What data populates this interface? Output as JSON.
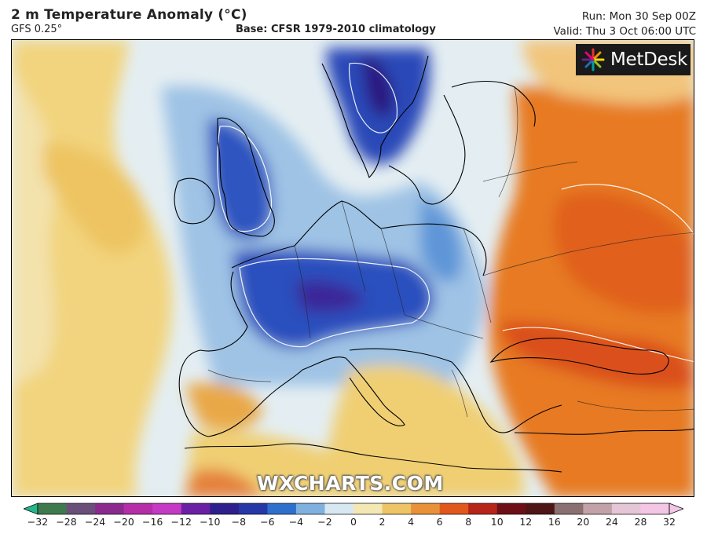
{
  "header": {
    "title": "2 m Temperature Anomaly (°C)",
    "model": "GFS 0.25°",
    "base": "Base: CFSR 1979-2010 climatology",
    "run": "Run: Mon 30 Sep 00Z",
    "valid": "Valid: Thu 3 Oct 06:00 UTC"
  },
  "logo": {
    "text": "MetDesk"
  },
  "watermark": "WXCHARTS.COM",
  "colorbar": {
    "ticks": [
      "−32",
      "−28",
      "−24",
      "−20",
      "−16",
      "−12",
      "−10",
      "−8",
      "−6",
      "−4",
      "−2",
      "0",
      "2",
      "4",
      "6",
      "8",
      "10",
      "12",
      "16",
      "20",
      "24",
      "28",
      "32"
    ],
    "colors": [
      "#27b58d",
      "#3e7a4d",
      "#6a4f7a",
      "#8b2a8c",
      "#b52ea8",
      "#c43ac4",
      "#6b1fa4",
      "#2f1f8c",
      "#2637a6",
      "#2f6fcc",
      "#7fb0df",
      "#d8e8f2",
      "#f3e7b4",
      "#edc566",
      "#e9913a",
      "#e1581d",
      "#b7241a",
      "#6e0f18",
      "#4e1616",
      "#8a7070",
      "#c2a2a8",
      "#e5c6d6",
      "#f4c6e6"
    ],
    "palette": {
      "cold_deep": "#26157a",
      "cold": "#2c58c2",
      "cool": "#a7c9e6",
      "neutral": "#eaf0f0",
      "warm": "#f2cf72",
      "hot": "#e8731f",
      "hotter": "#d9531a",
      "coast": "#000000",
      "contour": "#ffffff"
    }
  }
}
